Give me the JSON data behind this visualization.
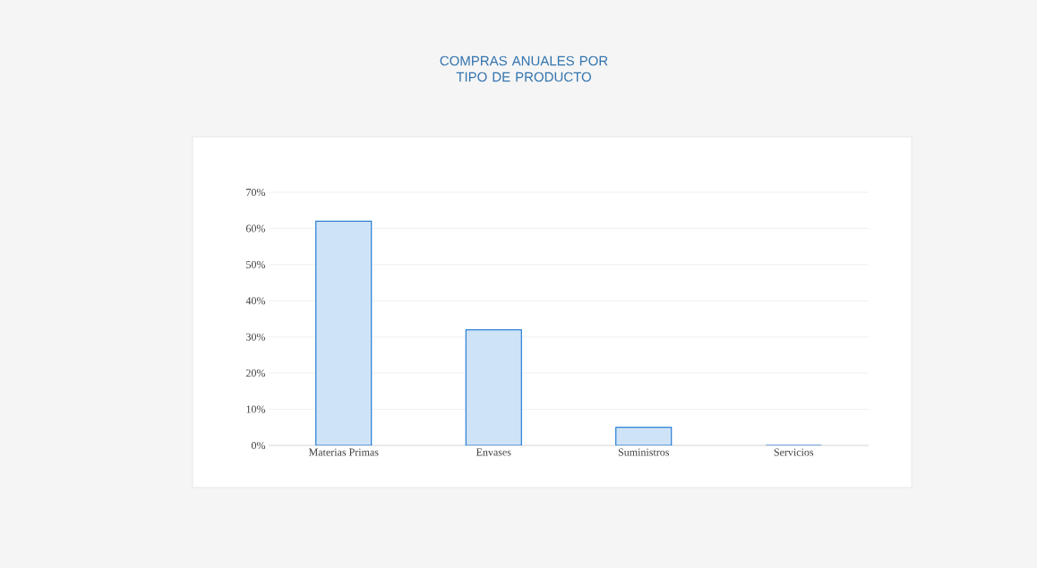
{
  "chart_data": {
    "type": "bar",
    "title": "COMPRAS ANUALES POR TIPO DE PRODUCTO",
    "categories": [
      "Materias Primas",
      "Envases",
      "Suministros",
      "Servicios"
    ],
    "values": [
      62,
      32,
      5,
      0
    ],
    "color": "#cfe3f7",
    "ylim": [
      0,
      70
    ],
    "yticks": [
      {
        "value": 0,
        "label": "0%"
      },
      {
        "value": 10,
        "label": "10%"
      },
      {
        "value": 20,
        "label": "20%"
      },
      {
        "value": 30,
        "label": "30%"
      },
      {
        "value": 40,
        "label": "40%"
      },
      {
        "value": 50,
        "label": "50%"
      },
      {
        "value": 60,
        "label": "60%"
      },
      {
        "value": 70,
        "label": "70%"
      }
    ],
    "grid": "y"
  }
}
